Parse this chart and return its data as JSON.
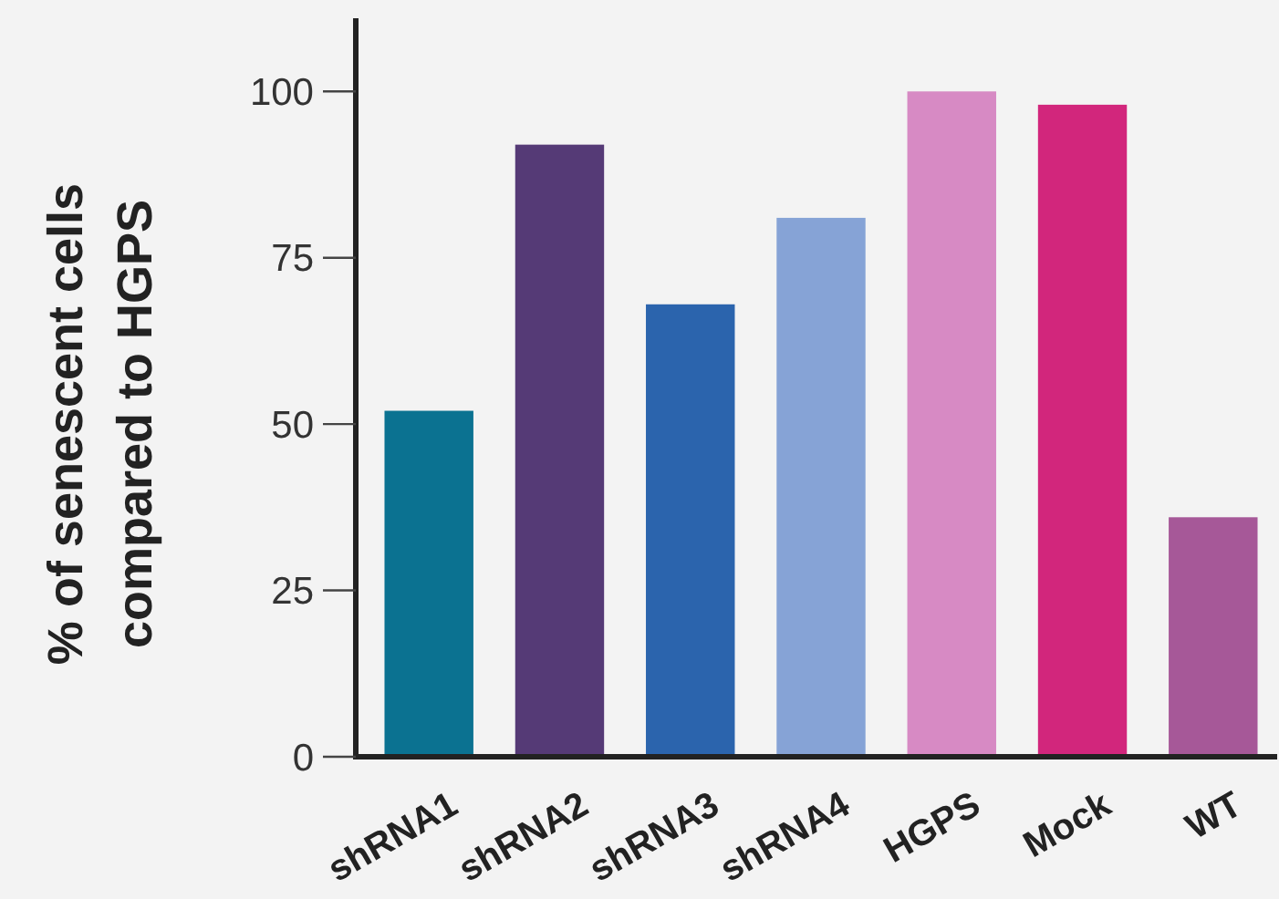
{
  "chart_data": {
    "type": "bar",
    "ylabel": "% of senescent cells\ncompared to HGPS",
    "categories": [
      "shRNA1",
      "shRNA2",
      "shRNA3",
      "shRNA4",
      "HGPS",
      "Mock",
      "WT"
    ],
    "values": [
      52,
      92,
      68,
      81,
      100,
      98,
      36
    ],
    "colors": [
      "#0b7291",
      "#553a76",
      "#2b64ad",
      "#86a3d6",
      "#d78ac4",
      "#d2267c",
      "#a65898"
    ],
    "ylim": [
      0,
      111
    ],
    "yticks": [
      0,
      25,
      50,
      75,
      100
    ],
    "grid": false
  }
}
